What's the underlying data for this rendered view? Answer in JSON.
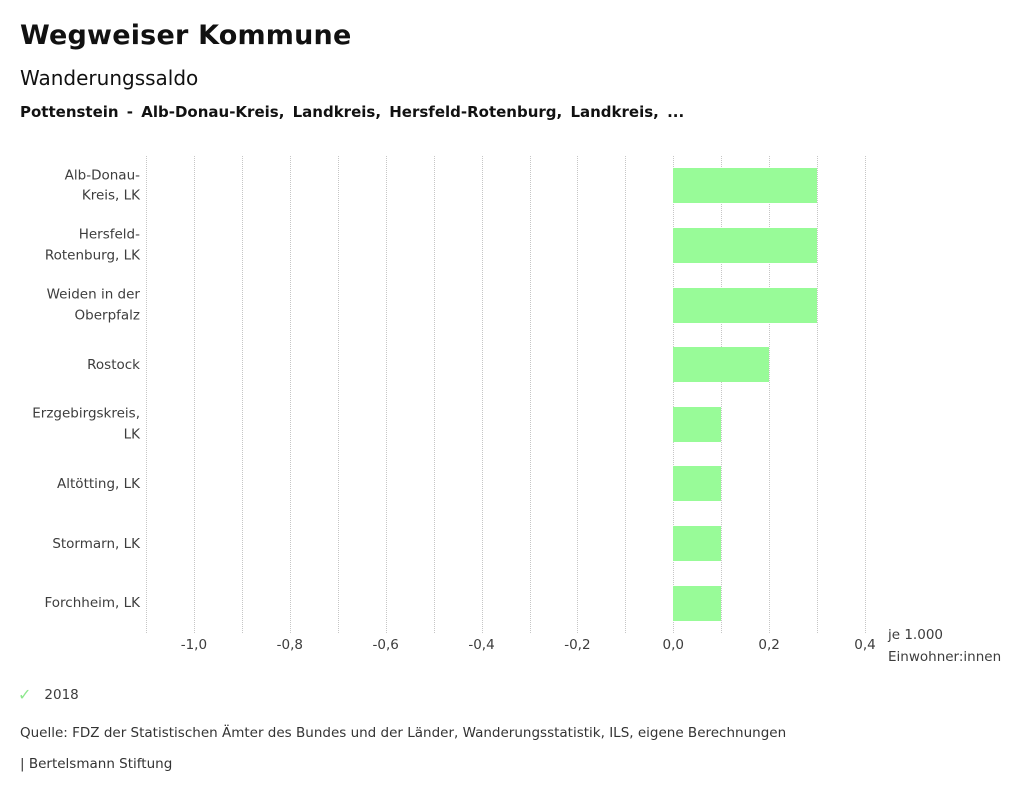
{
  "header": {
    "app_title": "Wegweiser Kommune",
    "chart_title": "Wanderungssaldo",
    "selection": "Pottenstein - Alb-Donau-Kreis, Landkreis, Hersfeld-Rotenburg, Landkreis, ..."
  },
  "chart_data": {
    "type": "bar",
    "orientation": "horizontal",
    "title": "Wanderungssaldo",
    "categories": [
      "Alb-Donau-Kreis, LK",
      "Hersfeld-Rotenburg, LK",
      "Weiden in der Oberpfalz",
      "Rostock",
      "Erzgebirgskreis, LK",
      "Altötting, LK",
      "Stormarn, LK",
      "Forchheim, LK"
    ],
    "category_display": [
      "Alb-Donau-\nKreis, LK",
      "Hersfeld-\nRotenburg, LK",
      "Weiden in der\nOberpfalz",
      "Rostock",
      "Erzgebirgskreis,\nLK",
      "Altötting, LK",
      "Stormarn, LK",
      "Forchheim, LK"
    ],
    "series": [
      {
        "name": "2018",
        "values": [
          0.3,
          0.3,
          0.3,
          0.2,
          0.1,
          0.1,
          0.1,
          0.1
        ]
      }
    ],
    "xlim": [
      -1.1,
      0.4
    ],
    "grid_step": 0.1,
    "xticks": [
      -1.0,
      -0.8,
      -0.6,
      -0.4,
      -0.2,
      0.0,
      0.2,
      0.4
    ],
    "xtick_labels": [
      "-1,0",
      "-0,8",
      "-0,6",
      "-0,4",
      "-0,2",
      "0,0",
      "0,2",
      "0,4"
    ],
    "unit_label": "je 1.000\nEinwohner:innen",
    "bar_color": "#98fb98",
    "grid_on": true,
    "legend_position": "bottom"
  },
  "legend": {
    "year": "2018",
    "check_icon": "check-mark",
    "check_color": "#8ee88e"
  },
  "footer": {
    "source": "Quelle: FDZ der Statistischen Ämter des Bundes und der Länder, Wanderungsstatistik, ILS, eigene Berechnungen",
    "branding": "| Bertelsmann Stiftung"
  }
}
